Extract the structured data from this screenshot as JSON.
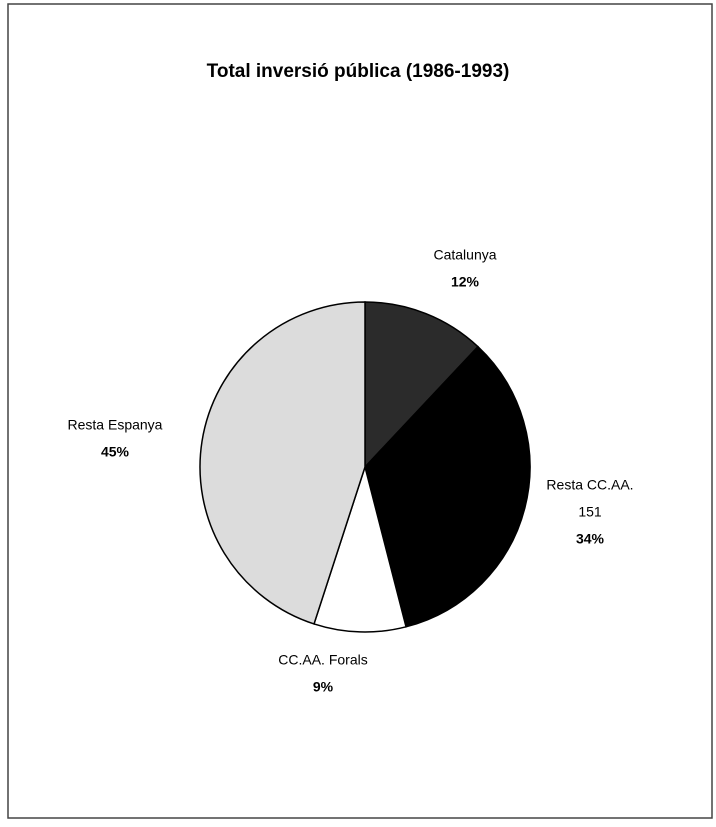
{
  "chart_data": {
    "type": "pie",
    "title": "Total inversió pública (1986-1993)",
    "categories": [
      "Catalunya",
      "Resta CC.AA.",
      "CC.AA. Forals",
      "Resta Espanya"
    ],
    "values": [
      12,
      34,
      9,
      45
    ],
    "value_labels": [
      "12%",
      "34%",
      "9%",
      "45%"
    ],
    "colors": [
      "#2b2b2b",
      "#000000",
      "#ffffff",
      "#dcdcdc"
    ],
    "annotations": [
      {
        "category": "Resta CC.AA.",
        "text": "151"
      }
    ]
  }
}
